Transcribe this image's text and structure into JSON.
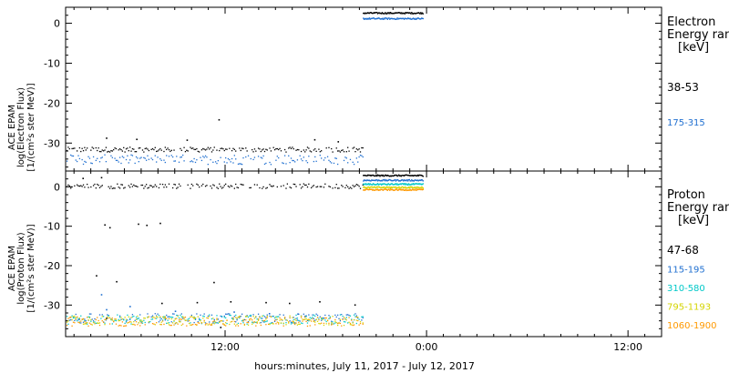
{
  "chart_data": {
    "type": "scatter",
    "xlabel": "hours:minutes, July 11, 2017 - July 12, 2017",
    "x_tick_labels": [
      "12:00",
      "0:00",
      "12:00"
    ],
    "x_tick_hours": [
      12,
      24,
      36
    ],
    "xlim_hours": [
      2.5,
      38
    ],
    "panels": [
      {
        "ylabel": [
          "ACE EPAM",
          "log(Electron Flux)",
          "[1/(cm²s ster MeV)]"
        ],
        "ylim": [
          -37,
          4
        ],
        "yticks": [
          0,
          -10,
          -20,
          -30
        ],
        "legend_title": [
          "Electron",
          "Energy range",
          "[keV]"
        ],
        "series": [
          {
            "name": "38-53",
            "color": "#000000",
            "low_level": -31.5,
            "high_level": 2.7,
            "outliers": [
              [
                11.6,
                -24
              ],
              [
                4.9,
                -28.6
              ],
              [
                6.7,
                -28.9
              ],
              [
                9.7,
                -29.1
              ],
              [
                17.3,
                -29.0
              ],
              [
                18.7,
                -29.5
              ]
            ]
          },
          {
            "name": "175-315",
            "color": "#1f6fd0",
            "low_level": -34.0,
            "high_level": 1.3,
            "outliers": []
          }
        ]
      },
      {
        "ylabel": [
          "ACE EPAM",
          "log(Proton Flux)",
          "[1/(cm²s ster MeV)]"
        ],
        "ylim": [
          -38,
          4
        ],
        "yticks": [
          0,
          -10,
          -20,
          -30
        ],
        "legend_title": [
          "Proton",
          "Energy range",
          "[keV]"
        ],
        "series": [
          {
            "name": "47-68",
            "color": "#000000",
            "low_level": 0.3,
            "high_level": 3.0,
            "outliers": [
              [
                3.5,
                2.3
              ],
              [
                4.6,
                2.5
              ],
              [
                4.8,
                -9.5
              ],
              [
                5.1,
                -10.2
              ],
              [
                6.8,
                -9.3
              ],
              [
                7.3,
                -9.6
              ],
              [
                8.1,
                -9.1
              ],
              [
                5.5,
                -23.9
              ],
              [
                4.3,
                -22.4
              ],
              [
                11.3,
                -24.1
              ],
              [
                4.9,
                -33.2
              ],
              [
                8.2,
                -29.4
              ],
              [
                10.3,
                -29.2
              ],
              [
                12.3,
                -29.0
              ],
              [
                14.4,
                -29.2
              ],
              [
                15.8,
                -29.4
              ],
              [
                17.6,
                -29.0
              ],
              [
                19.7,
                -29.8
              ],
              [
                11.7,
                -35.5
              ]
            ]
          },
          {
            "name": "115-195",
            "color": "#1f6fd0",
            "low_level": -33.2,
            "high_level": 1.8,
            "outliers": [
              [
                4.6,
                -27.2
              ],
              [
                4.9,
                -31.0
              ],
              [
                6.3,
                -30.2
              ],
              [
                9.0,
                -31.4
              ],
              [
                12.5,
                -31.6
              ],
              [
                14.6,
                -32.0
              ],
              [
                16.3,
                -32.1
              ]
            ]
          },
          {
            "name": "310-580",
            "color": "#00c8c8",
            "low_level": -33.5,
            "high_level": 0.8,
            "outliers": []
          },
          {
            "name": "795-1193",
            "color": "#d4d400",
            "low_level": -33.8,
            "high_level": 0.0,
            "outliers": []
          },
          {
            "name": "1060-1900",
            "color": "#ff9900",
            "low_level": -34.0,
            "high_level": -0.6,
            "outliers": []
          }
        ]
      }
    ],
    "low_regime_end_hour": 20.2,
    "high_regime_hours": [
      20.2,
      23.8
    ]
  }
}
